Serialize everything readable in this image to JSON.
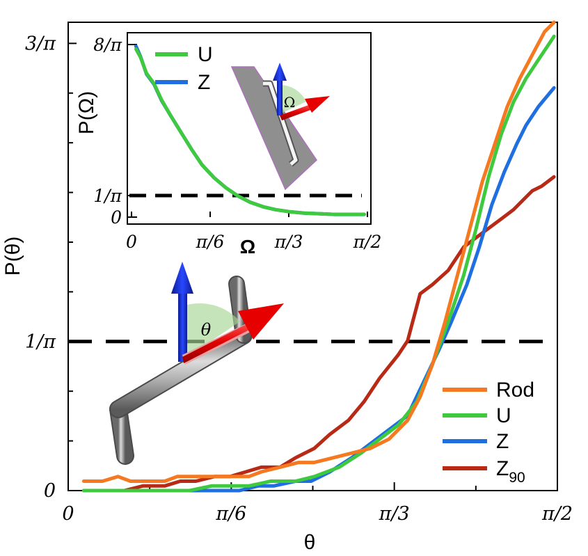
{
  "chart_data": [
    {
      "id": "main",
      "type": "line",
      "xlabel": "θ",
      "ylabel": "P(θ)",
      "xlim": [
        0,
        1.5708
      ],
      "ylim": [
        0,
        1.0
      ],
      "x_ticks": [
        {
          "value": 0,
          "label": "0"
        },
        {
          "value": 0.5236,
          "label": "π/6"
        },
        {
          "value": 1.0472,
          "label": "π/3"
        },
        {
          "value": 1.5708,
          "label": "π/2"
        }
      ],
      "y_ticks": [
        {
          "value": 0,
          "label": "0"
        },
        {
          "value": 0.3183,
          "label": "1/π"
        },
        {
          "value": 0.9549,
          "label": "3/π"
        }
      ],
      "reference_line": {
        "y": 0.3183,
        "style": "dashed"
      },
      "series": [
        {
          "name": "Rod",
          "color": "#f47920",
          "x": [
            0.05,
            0.11,
            0.16,
            0.2,
            0.25,
            0.31,
            0.35,
            0.4,
            0.46,
            0.52,
            0.58,
            0.62,
            0.68,
            0.74,
            0.79,
            0.85,
            0.91,
            0.97,
            1.03,
            1.09,
            1.13,
            1.17,
            1.21,
            1.25,
            1.29,
            1.33,
            1.37,
            1.41,
            1.45,
            1.49,
            1.53,
            1.56
          ],
          "y": [
            0.02,
            0.02,
            0.03,
            0.02,
            0.02,
            0.02,
            0.03,
            0.03,
            0.03,
            0.03,
            0.03,
            0.04,
            0.05,
            0.06,
            0.06,
            0.07,
            0.08,
            0.09,
            0.11,
            0.15,
            0.2,
            0.27,
            0.36,
            0.46,
            0.56,
            0.66,
            0.74,
            0.82,
            0.88,
            0.93,
            0.98,
            1.0
          ]
        },
        {
          "name": "U",
          "color": "#3fc93f",
          "x": [
            0.05,
            0.12,
            0.21,
            0.31,
            0.39,
            0.46,
            0.52,
            0.58,
            0.65,
            0.73,
            0.79,
            0.87,
            0.94,
            1.0,
            1.06,
            1.12,
            1.17,
            1.22,
            1.27,
            1.31,
            1.35,
            1.39,
            1.43,
            1.47,
            1.51,
            1.56
          ],
          "y": [
            0,
            0,
            0,
            0,
            0,
            0.01,
            0.01,
            0.01,
            0.02,
            0.02,
            0.03,
            0.05,
            0.08,
            0.11,
            0.14,
            0.19,
            0.27,
            0.36,
            0.46,
            0.56,
            0.67,
            0.76,
            0.83,
            0.88,
            0.92,
            0.97
          ]
        },
        {
          "name": "Z",
          "color": "#1f6fe0",
          "x": [
            0.31,
            0.39,
            0.47,
            0.55,
            0.61,
            0.66,
            0.73,
            0.78,
            0.84,
            0.91,
            0.97,
            1.03,
            1.09,
            1.14,
            1.19,
            1.23,
            1.28,
            1.32,
            1.36,
            1.4,
            1.44,
            1.47,
            1.51,
            1.56
          ],
          "y": [
            0,
            0,
            0,
            0,
            0.01,
            0.01,
            0.02,
            0.02,
            0.04,
            0.07,
            0.1,
            0.13,
            0.16,
            0.23,
            0.3,
            0.36,
            0.44,
            0.52,
            0.61,
            0.68,
            0.74,
            0.78,
            0.82,
            0.86
          ]
        },
        {
          "name": "Z90",
          "display_name": "Z",
          "subscript": "90",
          "color": "#b82a16",
          "x": [
            0.05,
            0.11,
            0.18,
            0.24,
            0.31,
            0.36,
            0.41,
            0.47,
            0.52,
            0.57,
            0.62,
            0.68,
            0.73,
            0.79,
            0.84,
            0.9,
            0.95,
            1.0,
            1.06,
            1.09,
            1.13,
            1.17,
            1.22,
            1.27,
            1.33,
            1.39,
            1.43,
            1.46,
            1.49,
            1.52,
            1.56
          ],
          "y": [
            0,
            0,
            0,
            0.01,
            0.01,
            0.02,
            0.02,
            0.03,
            0.03,
            0.04,
            0.05,
            0.05,
            0.07,
            0.09,
            0.12,
            0.15,
            0.19,
            0.24,
            0.29,
            0.32,
            0.42,
            0.44,
            0.47,
            0.52,
            0.55,
            0.58,
            0.6,
            0.62,
            0.64,
            0.65,
            0.67
          ]
        }
      ],
      "legend": {
        "placement": "bottom-right",
        "entries": [
          "Rod",
          "U",
          "Z",
          "Z90"
        ]
      },
      "annotation": {
        "angle_label": "θ"
      }
    },
    {
      "id": "inset",
      "type": "line",
      "xlabel": "Ω",
      "ylabel": "P(Ω)",
      "xlim": [
        0,
        1.5708
      ],
      "ylim": [
        0,
        2.5465
      ],
      "x_ticks": [
        {
          "value": 0,
          "label": "0"
        },
        {
          "value": 0.5236,
          "label": "π/6"
        },
        {
          "value": 1.0472,
          "label": "π/3"
        },
        {
          "value": 1.5708,
          "label": "π/2"
        }
      ],
      "y_ticks": [
        {
          "value": 0,
          "label": "0"
        },
        {
          "value": 0.3183,
          "label": "1/π"
        },
        {
          "value": 2.5465,
          "label": "8/π"
        }
      ],
      "reference_line": {
        "y": 0.3183,
        "style": "dashed"
      },
      "series": [
        {
          "name": "Z",
          "color": "#1f6fe0",
          "x": [
            0.03,
            0.06,
            0.1,
            0.15,
            0.2,
            0.26,
            0.33,
            0.4,
            0.47,
            0.55,
            0.63,
            0.71,
            0.79,
            0.88,
            0.96,
            1.05,
            1.15,
            1.25,
            1.35,
            1.45,
            1.55
          ],
          "y": [
            2.52,
            2.37,
            2.11,
            1.96,
            1.72,
            1.5,
            1.25,
            1.0,
            0.77,
            0.58,
            0.43,
            0.31,
            0.22,
            0.15,
            0.11,
            0.08,
            0.06,
            0.05,
            0.04,
            0.04,
            0.04
          ]
        },
        {
          "name": "U",
          "color": "#3fc93f",
          "x": [
            0.03,
            0.06,
            0.1,
            0.15,
            0.2,
            0.26,
            0.33,
            0.4,
            0.47,
            0.55,
            0.63,
            0.71,
            0.79,
            0.88,
            0.96,
            1.05,
            1.15,
            1.25,
            1.35,
            1.45,
            1.55
          ],
          "y": [
            2.48,
            2.36,
            2.12,
            1.97,
            1.73,
            1.5,
            1.25,
            1.0,
            0.77,
            0.58,
            0.43,
            0.31,
            0.22,
            0.15,
            0.11,
            0.08,
            0.06,
            0.05,
            0.04,
            0.04,
            0.04
          ]
        }
      ],
      "legend": {
        "placement": "top-left",
        "entries": [
          "U",
          "Z"
        ]
      },
      "annotation": {
        "angle_label": "Ω"
      }
    }
  ]
}
